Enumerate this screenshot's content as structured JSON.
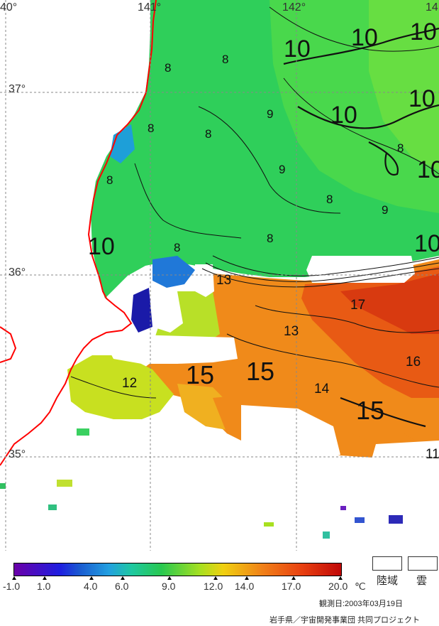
{
  "map": {
    "lon_labels": [
      "40°",
      "141°",
      "142°",
      "14"
    ],
    "lat_labels": [
      "37°",
      "36°",
      "35°"
    ],
    "contour_labels": [
      "8",
      "8",
      "8",
      "8",
      "8",
      "8",
      "8",
      "8",
      "9",
      "9",
      "9",
      "8",
      "10",
      "10",
      "10",
      "10",
      "10",
      "10",
      "10",
      "10",
      "13",
      "13",
      "17",
      "16",
      "15",
      "15",
      "15",
      "14",
      "12",
      "11"
    ]
  },
  "legend": {
    "ticks": [
      "-1.0",
      "1.0",
      "4.0",
      "6.0",
      "9.0",
      "12.0",
      "14.0",
      "17.0",
      "20.0"
    ],
    "unit": "℃",
    "land_label": "陸域",
    "cloud_label": "雲"
  },
  "footer": {
    "observed": "観測日:2003年03月19日",
    "credit": "岩手県／宇宙開発事業団 共同プロジェクト"
  },
  "colors": {
    "coast": "#ff0000",
    "grid": "#888888",
    "cold": "#1a2ab0",
    "green": "#2fd060",
    "warm": "#e8701a",
    "hot": "#d84010"
  }
}
